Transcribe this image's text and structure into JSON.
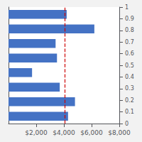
{
  "chart_data": {
    "type": "bar",
    "orientation": "horizontal",
    "categories": [
      null,
      null,
      null,
      null,
      null,
      null,
      null,
      null
    ],
    "values": [
      4300,
      4800,
      3700,
      1700,
      3500,
      3400,
      6200,
      4200
    ],
    "color": "#4472C4",
    "xlim": [
      0,
      8000
    ],
    "xticks": [
      {
        "value": 2000,
        "label": "$2,000"
      },
      {
        "value": 4000,
        "label": "$4,000"
      },
      {
        "value": 6000,
        "label": "$6,000"
      },
      {
        "value": 8000,
        "label": "$8,000"
      }
    ],
    "y2lim": [
      0,
      1
    ],
    "y2ticks": [
      0,
      0.1,
      0.2,
      0.3,
      0.4,
      0.5,
      0.6,
      0.7,
      0.8,
      0.9,
      1
    ],
    "vlines": [
      {
        "x": 4050,
        "color": "#CC0000",
        "line_style": "dashed"
      }
    ],
    "grid": false
  }
}
